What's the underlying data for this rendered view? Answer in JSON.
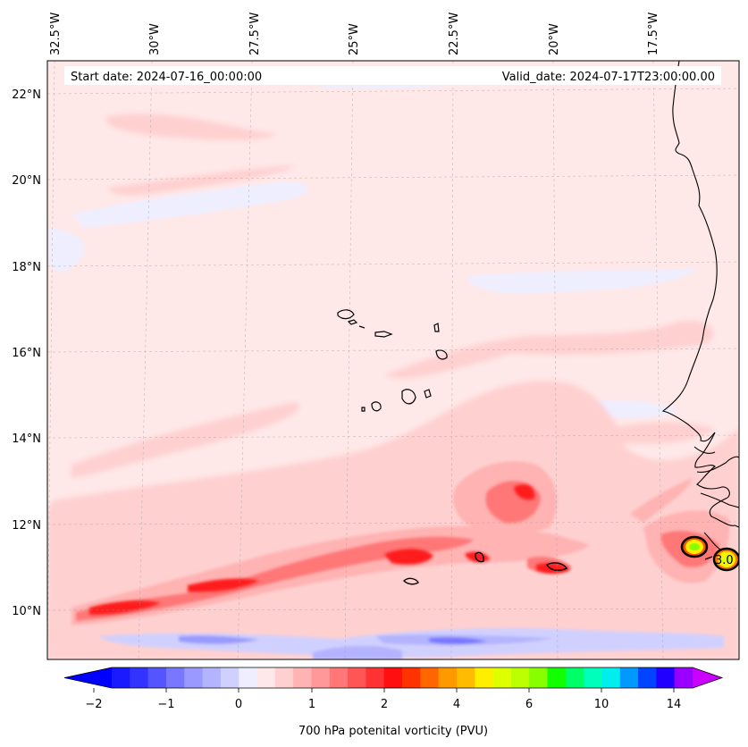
{
  "header": {
    "start_date": "Start date: 2024-07-16_00:00:00",
    "valid_date": "Valid_date: 2024-07-17T23:00:00.00"
  },
  "map": {
    "variable": "700 hPa potenital vorticity (PVU)",
    "longitude_labels": [
      "32.5°W",
      "30°W",
      "27.5°W",
      "25°W",
      "22.5°W",
      "20°W",
      "17.5°W"
    ],
    "latitude_labels": [
      "22°N",
      "20°N",
      "18°N",
      "16°N",
      "14°N",
      "12°N",
      "10°N"
    ],
    "contour_label": "3.0"
  },
  "colorbar": {
    "label": "700 hPa potenital vorticity (PVU)",
    "tick_labels": [
      "−2",
      "−1",
      "0",
      "1",
      "2",
      "4",
      "6",
      "10",
      "14"
    ],
    "colors": [
      "#1a1aff",
      "#3333ff",
      "#5555ff",
      "#7777ff",
      "#9999ff",
      "#b3b3ff",
      "#d0d0ff",
      "#eeeeff",
      "#ffe8e8",
      "#ffd0d0",
      "#ffb3b3",
      "#ff9999",
      "#ff7777",
      "#ff5555",
      "#ff3333",
      "#ff0f0f",
      "#ff3300",
      "#ff6600",
      "#ff9900",
      "#ffbb00",
      "#ffee00",
      "#ddff00",
      "#bbff00",
      "#88ff00",
      "#11ff00",
      "#00ff66",
      "#00ffbb",
      "#00eeee",
      "#0099ff",
      "#0044ff",
      "#2200ff",
      "#9900ff"
    ],
    "under_color": "#0000ff",
    "over_color": "#cc00ff"
  }
}
